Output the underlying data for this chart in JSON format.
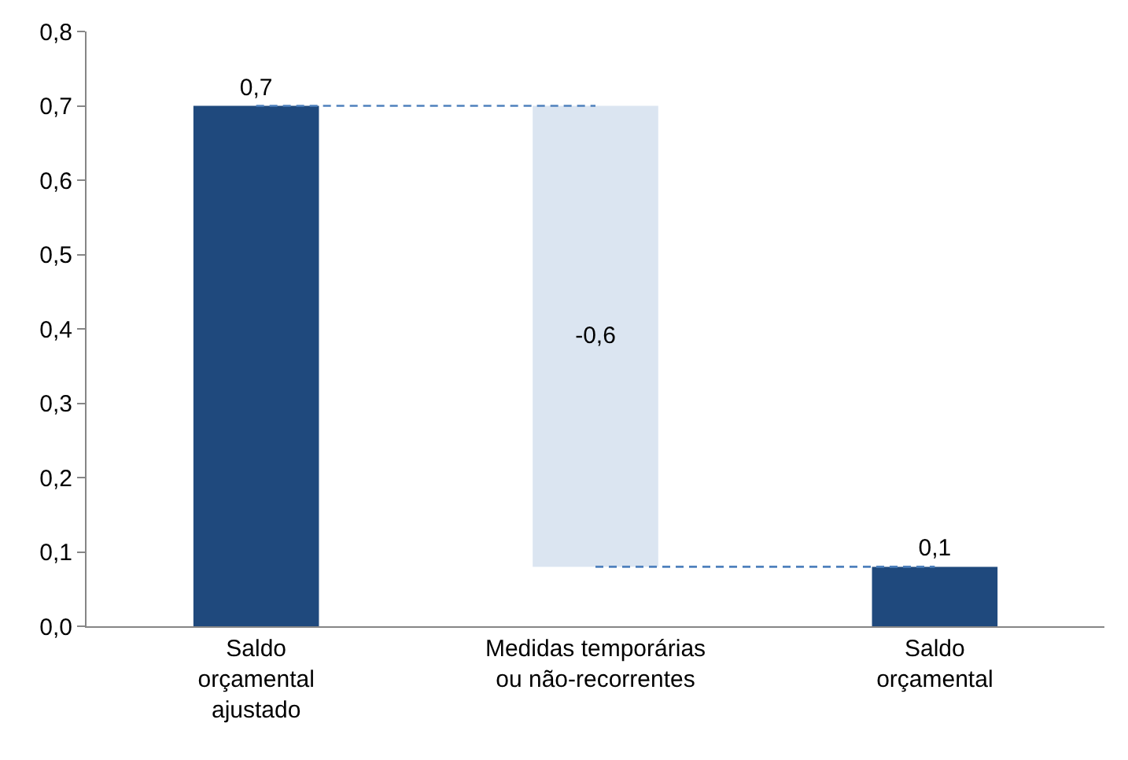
{
  "chart_data": {
    "type": "bar",
    "categories": [
      "Saldo\norçamental\najustado",
      "Medidas temporárias\nou não-recorrentes",
      "Saldo\norçamental"
    ],
    "values": [
      0.7,
      -0.62,
      0.08
    ],
    "base": [
      0,
      0.7,
      0
    ],
    "colors": [
      "#1f497d",
      "#dbe5f1",
      "#1f497d"
    ],
    "value_labels": [
      "0,7",
      "-0,6",
      "0,1"
    ],
    "series": [
      {
        "type": "line",
        "color": "#4f81bd",
        "line_style": "dashed",
        "marker": "none",
        "values": [
          0.7,
          0.7,
          null
        ]
      },
      {
        "type": "line",
        "color": "#4f81bd",
        "line_style": "dashed",
        "marker": "none",
        "values": [
          null,
          0.08,
          0.08
        ]
      }
    ],
    "ylim": [
      0,
      0.8
    ],
    "yticks": [
      {
        "value": 0,
        "label": "0,0"
      },
      {
        "value": 0.1,
        "label": "0,1"
      },
      {
        "value": 0.2,
        "label": "0,2"
      },
      {
        "value": 0.3,
        "label": "0,3"
      },
      {
        "value": 0.4,
        "label": "0,4"
      },
      {
        "value": 0.5,
        "label": "0,5"
      },
      {
        "value": 0.6,
        "label": "0,6"
      },
      {
        "value": 0.7,
        "label": "0,7"
      },
      {
        "value": 0.8,
        "label": "0,8"
      }
    ]
  }
}
